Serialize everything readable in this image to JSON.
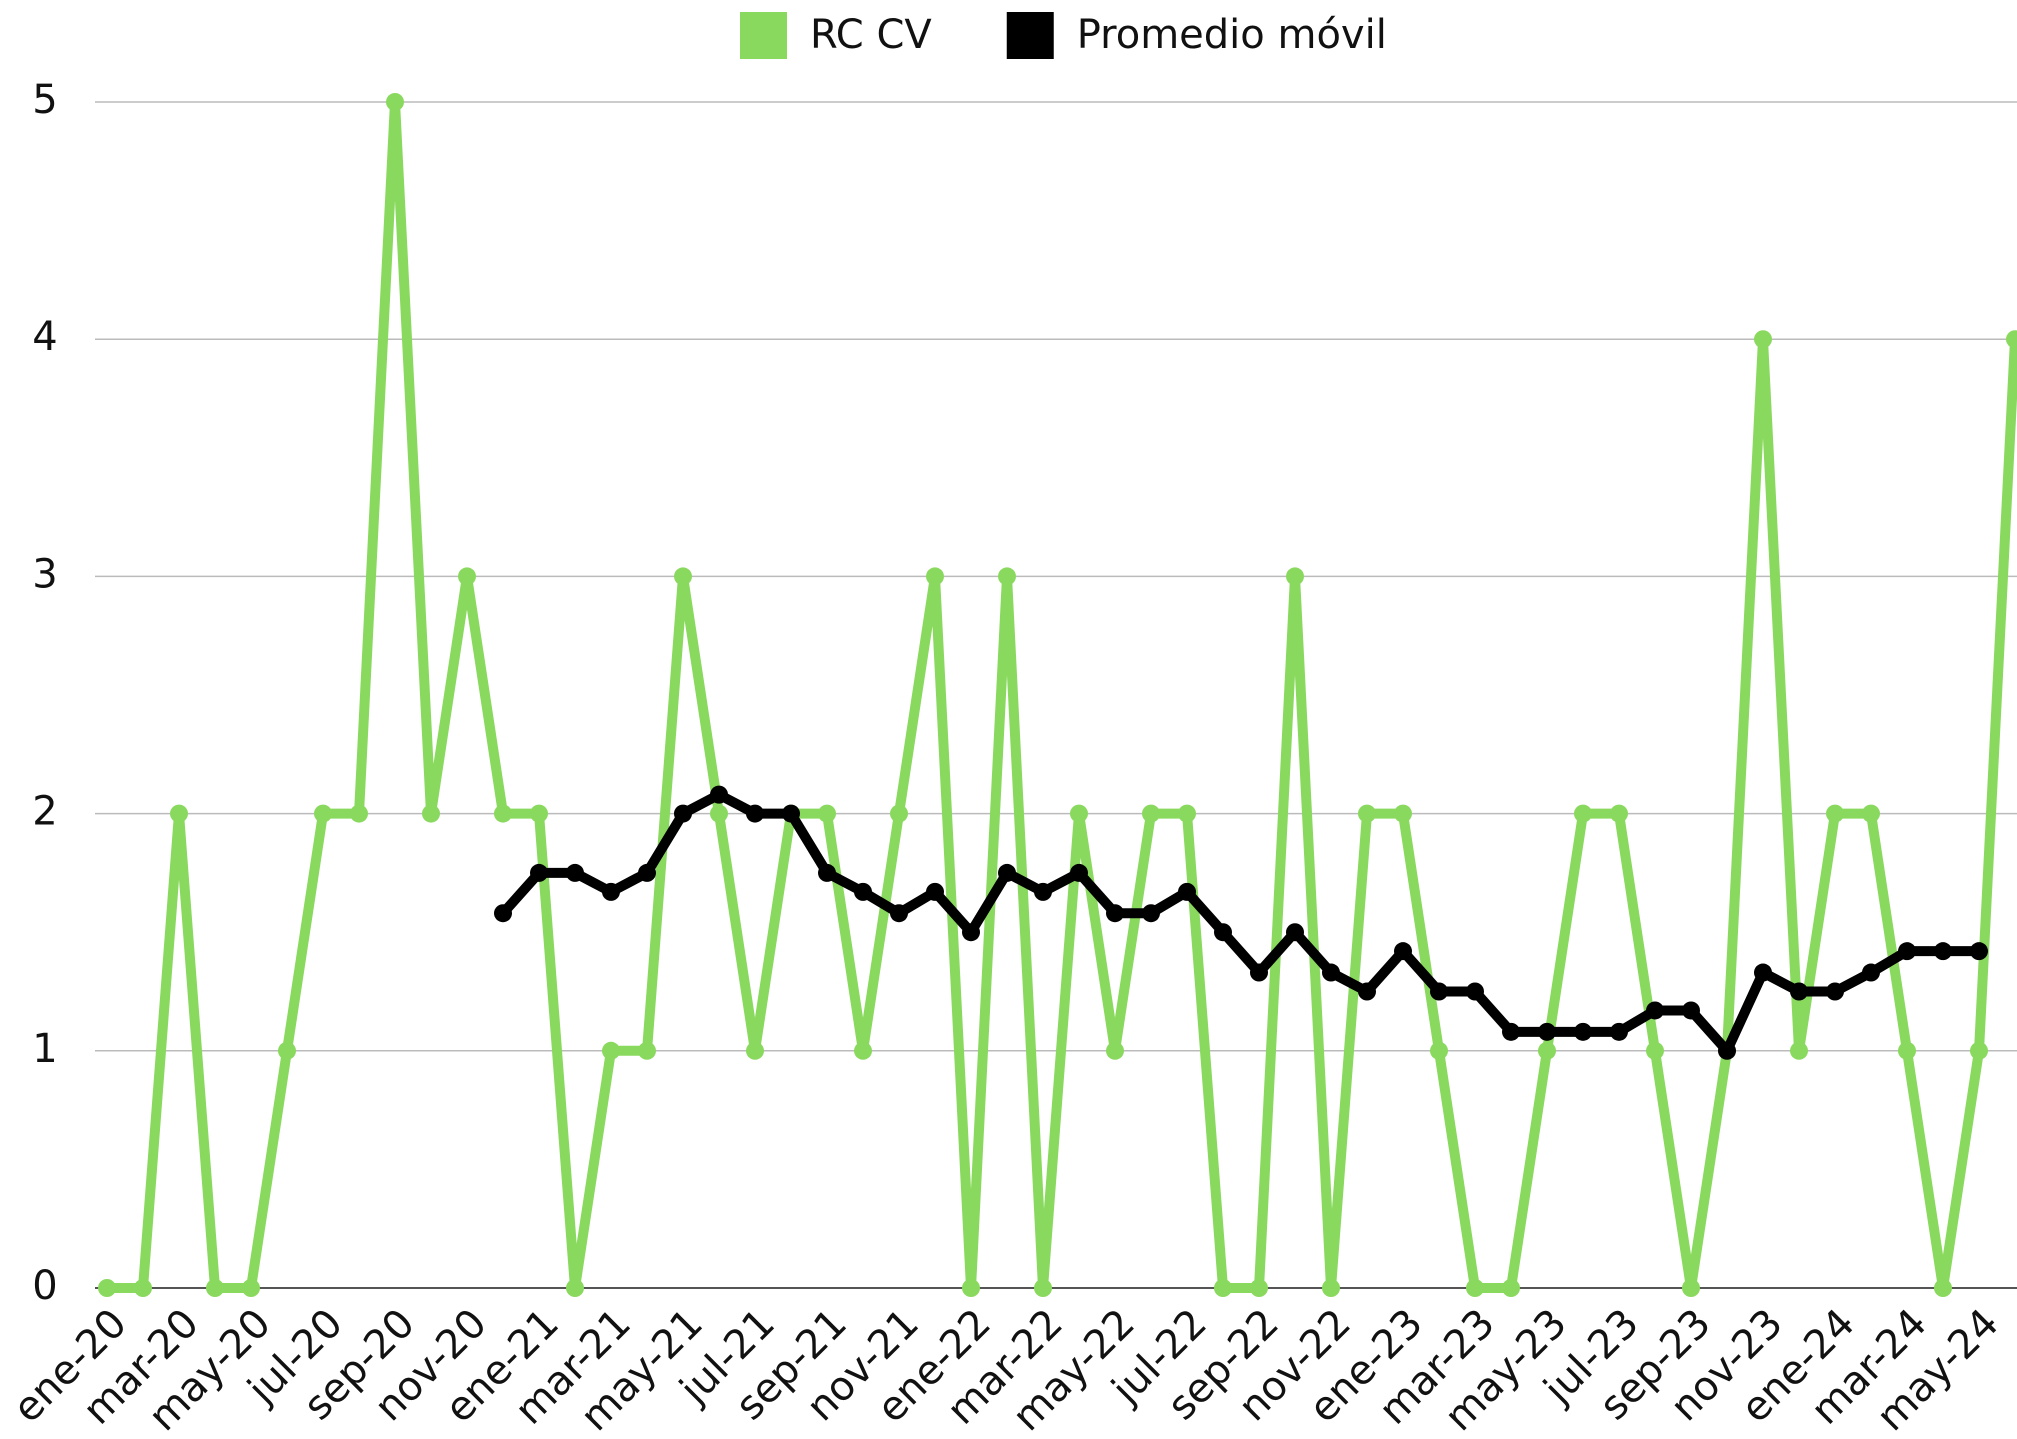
{
  "chart_data": {
    "type": "line",
    "categories": [
      "ene-20",
      null,
      "mar-20",
      null,
      "may-20",
      null,
      "jul-20",
      null,
      "sep-20",
      null,
      "nov-20",
      null,
      "ene-21",
      null,
      "mar-21",
      null,
      "may-21",
      null,
      "jul-21",
      null,
      "sep-21",
      null,
      "nov-21",
      null,
      "ene-22",
      null,
      "mar-22",
      null,
      "may-22",
      null,
      "jul-22",
      null,
      "sep-22",
      null,
      "nov-22",
      null,
      "ene-23",
      null,
      "mar-23",
      null,
      "may-23",
      null,
      "jul-23",
      null,
      "sep-23",
      null,
      "nov-23",
      null,
      "ene-24",
      null,
      "mar-24",
      null,
      "may-24",
      null
    ],
    "series": [
      {
        "name": "RC CV",
        "color": "#8ad95f",
        "values": [
          0,
          0,
          2,
          0,
          0,
          1,
          2,
          2,
          5,
          2,
          3,
          2,
          2,
          0,
          1,
          1,
          3,
          2,
          1,
          2,
          2,
          1,
          2,
          3,
          0,
          3,
          0,
          2,
          1,
          2,
          2,
          0,
          0,
          3,
          0,
          2,
          2,
          1,
          0,
          0,
          1,
          2,
          2,
          1,
          0,
          1,
          4,
          1,
          2,
          2,
          1,
          0,
          1,
          4
        ]
      },
      {
        "name": "Promedio móvil",
        "color": "#000000",
        "values": [
          null,
          null,
          null,
          null,
          null,
          null,
          null,
          null,
          null,
          null,
          null,
          1.58,
          1.75,
          1.75,
          1.67,
          1.75,
          2.0,
          2.08,
          2.0,
          2.0,
          1.75,
          1.67,
          1.58,
          1.67,
          1.5,
          1.75,
          1.67,
          1.75,
          1.58,
          1.58,
          1.67,
          1.5,
          1.33,
          1.5,
          1.33,
          1.25,
          1.42,
          1.25,
          1.25,
          1.08,
          1.08,
          1.08,
          1.08,
          1.17,
          1.17,
          1.0,
          1.33,
          1.25,
          1.25,
          1.33,
          1.42,
          1.42,
          1.42,
          null
        ]
      }
    ],
    "ylim": [
      0,
      5
    ],
    "yticks": [
      0,
      1,
      2,
      3,
      4,
      5
    ],
    "grid": true,
    "legend": "top"
  }
}
